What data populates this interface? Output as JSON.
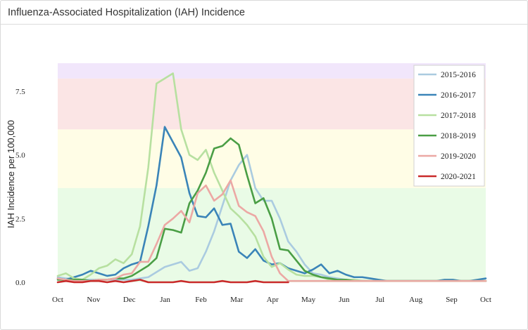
{
  "card": {
    "title": "Influenza-Associated Hospitalization (IAH) Incidence"
  },
  "chart_data": {
    "type": "line",
    "title": "Influenza-Associated Hospitalization (IAH) Incidence",
    "xlabel": "",
    "ylabel": "IAH Incidence per 100,000",
    "xlim": [
      0,
      52
    ],
    "ylim": [
      0,
      8.6
    ],
    "month_ticks": [
      {
        "label": "Oct",
        "week": 0
      },
      {
        "label": "Nov",
        "week": 4.35
      },
      {
        "label": "Dec",
        "week": 8.7
      },
      {
        "label": "Jan",
        "week": 13.05
      },
      {
        "label": "Feb",
        "week": 17.4
      },
      {
        "label": "Mar",
        "week": 21.75
      },
      {
        "label": "Apr",
        "week": 26.1
      },
      {
        "label": "May",
        "week": 30.45
      },
      {
        "label": "Jun",
        "week": 34.8
      },
      {
        "label": "Jul",
        "week": 39.15
      },
      {
        "label": "Aug",
        "week": 43.5
      },
      {
        "label": "Sep",
        "week": 47.85
      },
      {
        "label": "Oct",
        "week": 52.2
      }
    ],
    "y_ticks": [
      {
        "label": "0.0",
        "value": 0
      },
      {
        "label": "2.5",
        "value": 2.5
      },
      {
        "label": "5.0",
        "value": 5.0
      },
      {
        "label": "7.5",
        "value": 7.5
      }
    ],
    "bands": [
      {
        "from": 0,
        "to": 3.7,
        "color": "#e9fbe6"
      },
      {
        "from": 3.7,
        "to": 6.0,
        "color": "#fffde6"
      },
      {
        "from": 6.0,
        "to": 8.0,
        "color": "#fbe5e5"
      },
      {
        "from": 8.0,
        "to": 8.6,
        "color": "#f1e6fb"
      }
    ],
    "series": [
      {
        "name": "2015-2016",
        "color": "#aacbe0",
        "values": [
          0.2,
          0.15,
          0.15,
          0.1,
          0.1,
          0.1,
          0.1,
          0.1,
          0.1,
          0.1,
          0.15,
          0.2,
          0.4,
          0.6,
          0.7,
          0.8,
          0.45,
          0.55,
          1.2,
          2.0,
          3.0,
          4.0,
          4.6,
          5.0,
          3.7,
          3.2,
          3.2,
          2.5,
          1.6,
          1.2,
          0.7,
          0.35,
          0.3,
          0.2,
          0.15,
          0.1,
          0.1,
          0.05,
          0.05,
          0.05,
          0.05,
          0.05,
          0.05,
          0.05,
          0.05,
          0.05,
          0.05,
          0.05,
          0.05,
          0.05,
          0.05,
          0.05,
          0.05
        ]
      },
      {
        "name": "2016-2017",
        "color": "#3a84b8",
        "values": [
          0.15,
          0.1,
          0.2,
          0.3,
          0.45,
          0.35,
          0.25,
          0.3,
          0.55,
          0.7,
          0.8,
          2.2,
          3.8,
          6.1,
          5.5,
          4.9,
          3.5,
          2.6,
          2.55,
          2.9,
          2.25,
          2.3,
          1.2,
          0.95,
          1.3,
          0.85,
          0.7,
          0.75,
          0.55,
          0.45,
          0.35,
          0.5,
          0.7,
          0.35,
          0.45,
          0.3,
          0.2,
          0.2,
          0.15,
          0.1,
          0.05,
          0.05,
          0.05,
          0.05,
          0.05,
          0.05,
          0.05,
          0.1,
          0.1,
          0.05,
          0.05,
          0.1,
          0.15
        ]
      },
      {
        "name": "2017-2018",
        "color": "#b7e0a0",
        "values": [
          0.25,
          0.35,
          0.15,
          0.1,
          0.3,
          0.55,
          0.65,
          0.9,
          0.75,
          1.1,
          2.2,
          4.5,
          7.8,
          8.0,
          8.2,
          6.0,
          5.0,
          4.8,
          5.2,
          4.3,
          3.6,
          2.9,
          2.6,
          2.25,
          1.8,
          1.0,
          0.6,
          0.75,
          0.5,
          0.3,
          0.25,
          0.25,
          0.2,
          0.1,
          0.1,
          0.1,
          0.1,
          0.05,
          0.05,
          0.05,
          0.05,
          0.05,
          0.05,
          0.05,
          0.05,
          0.05,
          0.05,
          0.05,
          0.05,
          0.05,
          0.05,
          0.05,
          0.05
        ]
      },
      {
        "name": "2018-2019",
        "color": "#4a9e45",
        "values": [
          0.1,
          0.1,
          0.1,
          0.1,
          0.05,
          0.1,
          0.1,
          0.15,
          0.15,
          0.25,
          0.45,
          0.65,
          0.95,
          2.1,
          2.05,
          1.95,
          3.1,
          3.6,
          4.3,
          5.25,
          5.35,
          5.65,
          5.4,
          4.2,
          3.1,
          3.3,
          2.5,
          1.3,
          1.25,
          0.85,
          0.45,
          0.3,
          0.2,
          0.15,
          0.1,
          0.1,
          0.05,
          0.05,
          0.05,
          0.05,
          0.05,
          0.05,
          0.05,
          0.05,
          0.05,
          0.05,
          0.05,
          0.05,
          0.05,
          0.05,
          0.05,
          0.05,
          0.05
        ]
      },
      {
        "name": "2019-2020",
        "color": "#eca8a4",
        "values": [
          0.15,
          0.1,
          0.05,
          0.05,
          0.05,
          0.1,
          0.1,
          0.15,
          0.3,
          0.35,
          0.8,
          0.8,
          1.5,
          2.25,
          2.5,
          2.8,
          2.35,
          3.5,
          3.8,
          3.2,
          3.45,
          4.0,
          3.0,
          2.75,
          2.6,
          2.0,
          1.0,
          0.35,
          0.05,
          0.05,
          0.05,
          0.05,
          0.05,
          0.05,
          0.05,
          0.05,
          0.05,
          0.05,
          0.05,
          0.05,
          0.05,
          0.05,
          0.05,
          0.05,
          0.05,
          0.05,
          0.05,
          0.05,
          0.05,
          0.05,
          0.05,
          0.05,
          0.05
        ]
      },
      {
        "name": "2020-2021",
        "color": "#c92a2a",
        "values": [
          0.0,
          0.05,
          0.0,
          0.0,
          0.05,
          0.05,
          0.0,
          0.05,
          0.0,
          0.05,
          0.1,
          0.0,
          0.0,
          0.0,
          0.0,
          0.05,
          0.0,
          0.0,
          0.0,
          0.0,
          0.05,
          0.0,
          0.0,
          0.0,
          0.05,
          0.0,
          0.0,
          0.0,
          0.0
        ]
      }
    ],
    "legend": "top-right",
    "grid": false
  }
}
